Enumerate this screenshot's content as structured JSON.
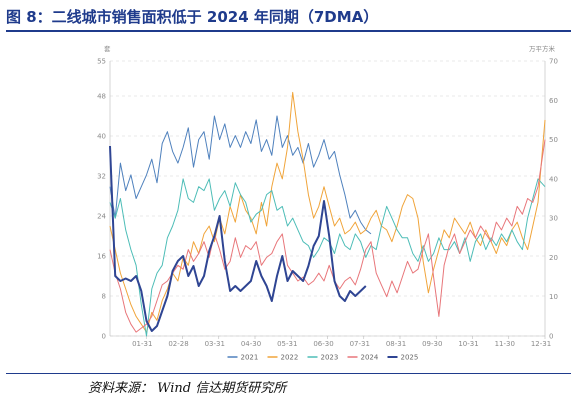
{
  "header": {
    "title": "图 8：二线城市销售面积低于 2024 年同期（7DMA）"
  },
  "footer": {
    "source": "资料来源：    Wind  信达期货研究所"
  },
  "chart_data": {
    "type": "line",
    "title": "",
    "y_left": {
      "unit": "套",
      "ticks": [
        "0",
        "8",
        "16",
        "24",
        "32",
        "40",
        "48",
        "55"
      ],
      "range": [
        0,
        55
      ]
    },
    "y_right": {
      "unit": "万平方米",
      "ticks": [
        "0",
        "10",
        "20",
        "30",
        "40",
        "50",
        "60",
        "70"
      ],
      "range": [
        0,
        70
      ]
    },
    "x_tick_labels": [
      "01-31",
      "02-28",
      "03-31",
      "04-30",
      "05-31",
      "06-30",
      "07-31",
      "08-31",
      "09-30",
      "10-31",
      "11-30",
      "12-31"
    ],
    "legend_position": "bottom",
    "grid": "horizontal-dashed",
    "series": [
      {
        "name": "2021",
        "color": "#4f81bd",
        "width": 1.0,
        "axis": "right",
        "x": [
          0,
          0.012,
          0.024,
          0.036,
          0.048,
          0.06,
          0.072,
          0.084,
          0.096,
          0.108,
          0.12,
          0.132,
          0.144,
          0.156,
          0.168,
          0.18,
          0.192,
          0.204,
          0.216,
          0.228,
          0.24,
          0.252,
          0.264,
          0.276,
          0.288,
          0.3,
          0.312,
          0.324,
          0.336,
          0.348,
          0.36,
          0.372,
          0.384,
          0.396,
          0.408,
          0.42,
          0.432,
          0.444,
          0.456,
          0.468,
          0.48,
          0.492,
          0.504,
          0.516,
          0.528,
          0.54,
          0.552,
          0.564,
          0.576,
          0.588,
          0.6
        ],
        "values": [
          38,
          30,
          44,
          37,
          41,
          35,
          38,
          41,
          45,
          39,
          49,
          52,
          47,
          44,
          48,
          53,
          43,
          50,
          52,
          45,
          56,
          50,
          54,
          48,
          51,
          48,
          52,
          49,
          55,
          47,
          50,
          46,
          56,
          48,
          51,
          46,
          48,
          44,
          49,
          43,
          46,
          50,
          45,
          47,
          41,
          36,
          30,
          32,
          29,
          27,
          26
        ]
      },
      {
        "name": "2022",
        "color": "#f0a43a",
        "width": 1.0,
        "axis": "right",
        "x": [
          0,
          0.012,
          0.024,
          0.036,
          0.048,
          0.06,
          0.072,
          0.084,
          0.096,
          0.108,
          0.12,
          0.132,
          0.144,
          0.156,
          0.168,
          0.18,
          0.192,
          0.204,
          0.216,
          0.228,
          0.24,
          0.252,
          0.264,
          0.276,
          0.288,
          0.3,
          0.312,
          0.324,
          0.336,
          0.348,
          0.36,
          0.372,
          0.384,
          0.396,
          0.408,
          0.42,
          0.432,
          0.444,
          0.456,
          0.468,
          0.48,
          0.492,
          0.504,
          0.516,
          0.528,
          0.54,
          0.552,
          0.564,
          0.576,
          0.588,
          0.6,
          0.612,
          0.624,
          0.636,
          0.648,
          0.66,
          0.672,
          0.684,
          0.696,
          0.708,
          0.72,
          0.732,
          0.744,
          0.756,
          0.768,
          0.78,
          0.792,
          0.804,
          0.816,
          0.828,
          0.84,
          0.852,
          0.864,
          0.876,
          0.888,
          0.9,
          0.912,
          0.924,
          0.936,
          0.948,
          0.96,
          0.972,
          0.984,
          1.0
        ],
        "values": [
          28,
          22,
          16,
          12,
          8,
          5,
          3,
          1,
          6,
          4,
          9,
          12,
          16,
          14,
          20,
          18,
          24,
          21,
          26,
          28,
          24,
          30,
          26,
          33,
          29,
          36,
          32,
          30,
          26,
          34,
          28,
          38,
          44,
          40,
          48,
          62,
          52,
          45,
          36,
          30,
          33,
          38,
          33,
          28,
          30,
          26,
          27,
          29,
          26,
          27,
          30,
          32,
          28,
          27,
          24,
          28,
          33,
          36,
          35,
          30,
          19,
          11,
          17,
          22,
          27,
          25,
          30,
          28,
          26,
          29,
          25,
          23,
          27,
          24,
          21,
          25,
          23,
          27,
          29,
          25,
          22,
          28,
          34,
          55
        ]
      },
      {
        "name": "2023",
        "color": "#4dbdb7",
        "width": 1.0,
        "axis": "right",
        "x": [
          0,
          0.012,
          0.024,
          0.036,
          0.048,
          0.06,
          0.072,
          0.084,
          0.096,
          0.108,
          0.12,
          0.132,
          0.144,
          0.156,
          0.168,
          0.18,
          0.192,
          0.204,
          0.216,
          0.228,
          0.24,
          0.252,
          0.264,
          0.276,
          0.288,
          0.3,
          0.312,
          0.324,
          0.336,
          0.348,
          0.36,
          0.372,
          0.384,
          0.396,
          0.408,
          0.42,
          0.432,
          0.444,
          0.456,
          0.468,
          0.48,
          0.492,
          0.504,
          0.516,
          0.528,
          0.54,
          0.552,
          0.564,
          0.576,
          0.588,
          0.6,
          0.612,
          0.624,
          0.636,
          0.648,
          0.66,
          0.672,
          0.684,
          0.696,
          0.708,
          0.72,
          0.732,
          0.744,
          0.756,
          0.768,
          0.78,
          0.792,
          0.804,
          0.816,
          0.828,
          0.84,
          0.852,
          0.864,
          0.876,
          0.888,
          0.9,
          0.912,
          0.924,
          0.936,
          0.948,
          0.96,
          0.972,
          0.984,
          1.0
        ],
        "values": [
          34,
          30,
          35,
          27,
          22,
          18,
          8,
          0,
          12,
          16,
          18,
          25,
          28,
          32,
          40,
          35,
          34,
          38,
          37,
          40,
          32,
          35,
          37,
          33,
          39,
          36,
          34,
          29,
          31,
          32,
          36,
          37,
          32,
          33,
          28,
          30,
          27,
          24,
          23,
          20,
          22,
          25,
          24,
          21,
          26,
          23,
          22,
          26,
          24,
          20,
          23,
          22,
          28,
          33,
          30,
          27,
          25,
          25,
          21,
          19,
          23,
          19,
          21,
          25,
          22,
          22,
          24,
          21,
          25,
          19,
          24,
          26,
          22,
          25,
          23,
          26,
          24,
          27,
          24,
          22,
          30,
          35,
          40,
          38
        ]
      },
      {
        "name": "2024",
        "color": "#e8767a",
        "width": 1.0,
        "axis": "right",
        "x": [
          0,
          0.012,
          0.024,
          0.036,
          0.048,
          0.06,
          0.072,
          0.084,
          0.096,
          0.108,
          0.12,
          0.132,
          0.144,
          0.156,
          0.168,
          0.18,
          0.192,
          0.204,
          0.216,
          0.228,
          0.24,
          0.252,
          0.264,
          0.276,
          0.288,
          0.3,
          0.312,
          0.324,
          0.336,
          0.348,
          0.36,
          0.372,
          0.384,
          0.396,
          0.408,
          0.42,
          0.432,
          0.444,
          0.456,
          0.468,
          0.48,
          0.492,
          0.504,
          0.516,
          0.528,
          0.54,
          0.552,
          0.564,
          0.576,
          0.588,
          0.6,
          0.612,
          0.624,
          0.636,
          0.648,
          0.66,
          0.672,
          0.684,
          0.696,
          0.708,
          0.72,
          0.732,
          0.744,
          0.756,
          0.768,
          0.78,
          0.792,
          0.804,
          0.816,
          0.828,
          0.84,
          0.852,
          0.864,
          0.876,
          0.888,
          0.9,
          0.912,
          0.924,
          0.936,
          0.948,
          0.96,
          0.972,
          0.984,
          1.0
        ],
        "values": [
          22,
          16,
          12,
          6,
          3,
          1,
          2,
          3,
          5,
          9,
          13,
          14,
          16,
          18,
          17,
          22,
          19,
          21,
          24,
          20,
          26,
          22,
          17,
          19,
          25,
          20,
          23,
          22,
          24,
          18,
          20,
          21,
          24,
          26,
          18,
          16,
          14,
          15,
          13,
          14,
          16,
          14,
          18,
          14,
          12,
          14,
          15,
          13,
          17,
          22,
          24,
          16,
          13,
          10,
          14,
          11,
          15,
          19,
          16,
          17,
          22,
          26,
          15,
          5,
          18,
          23,
          26,
          21,
          24,
          27,
          25,
          28,
          26,
          24,
          29,
          27,
          30,
          28,
          33,
          31,
          35,
          34,
          38,
          50
        ]
      },
      {
        "name": "2025",
        "color": "#2f4593",
        "width": 2.0,
        "axis": "left",
        "x": [
          0,
          0.012,
          0.024,
          0.036,
          0.048,
          0.06,
          0.072,
          0.084,
          0.096,
          0.108,
          0.12,
          0.132,
          0.144,
          0.156,
          0.168,
          0.18,
          0.192,
          0.204,
          0.216,
          0.228,
          0.24,
          0.252,
          0.264,
          0.276,
          0.288,
          0.3,
          0.312,
          0.324,
          0.336,
          0.348,
          0.36,
          0.372,
          0.384,
          0.396,
          0.408,
          0.42,
          0.432,
          0.444,
          0.456,
          0.468,
          0.48,
          0.492,
          0.504,
          0.516,
          0.528,
          0.54,
          0.552,
          0.564,
          0.576,
          0.588
        ],
        "values": [
          38,
          12,
          11,
          11.5,
          11,
          12,
          9,
          3,
          1,
          2,
          5,
          8,
          13,
          15,
          16,
          12,
          14,
          10,
          12,
          17,
          20,
          24,
          15,
          9,
          10,
          9,
          10,
          11,
          15,
          12,
          10,
          7,
          12,
          16,
          11,
          13,
          12,
          11,
          14,
          18,
          20,
          27,
          20,
          11,
          8,
          7,
          9,
          8,
          9,
          10
        ]
      }
    ]
  }
}
